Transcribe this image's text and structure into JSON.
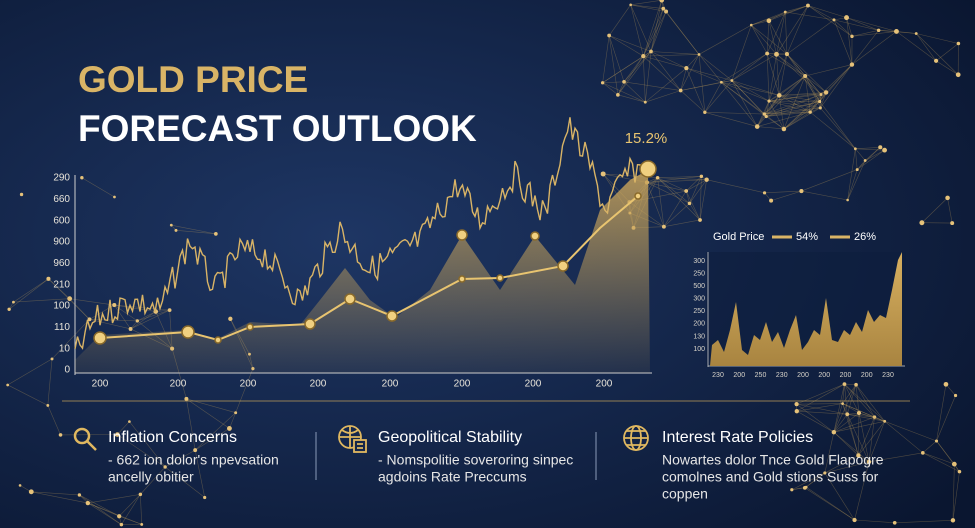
{
  "header": {
    "line1": "GOLD PRICE",
    "line2": "FORECAST OUTLOOK"
  },
  "main_chart": {
    "y_labels": [
      "290",
      "660",
      "600",
      "900",
      "960",
      "210",
      "100",
      "110",
      "10",
      "0"
    ],
    "x_labels": [
      "200",
      "200",
      "200",
      "200",
      "200",
      "200",
      "200",
      "200"
    ],
    "annotation": "15.2%"
  },
  "inset_chart": {
    "legend": [
      "Gold Price",
      "54%",
      "26%"
    ],
    "y_labels": [
      "300",
      "250",
      "500",
      "300",
      "250",
      "200",
      "130",
      "100"
    ],
    "x_labels": [
      "230",
      "200",
      "250",
      "230",
      "200",
      "200",
      "200",
      "200",
      "230"
    ]
  },
  "cards": [
    {
      "title": "Inflation Concerns",
      "body": [
        "- 662 ion dolor's npevsation",
        "ancelly obitier"
      ]
    },
    {
      "title": "Geopolitical Stability",
      "body": [
        "- Nomspolitie soveroring sinpec",
        "agdoins Rate Preccums"
      ]
    },
    {
      "title": "Interest Rate Policies",
      "body": [
        "Nowartes dolor Tnce Gold Flapogre",
        "comolnes and Gold stions Suss for",
        "coppen"
      ]
    }
  ]
}
